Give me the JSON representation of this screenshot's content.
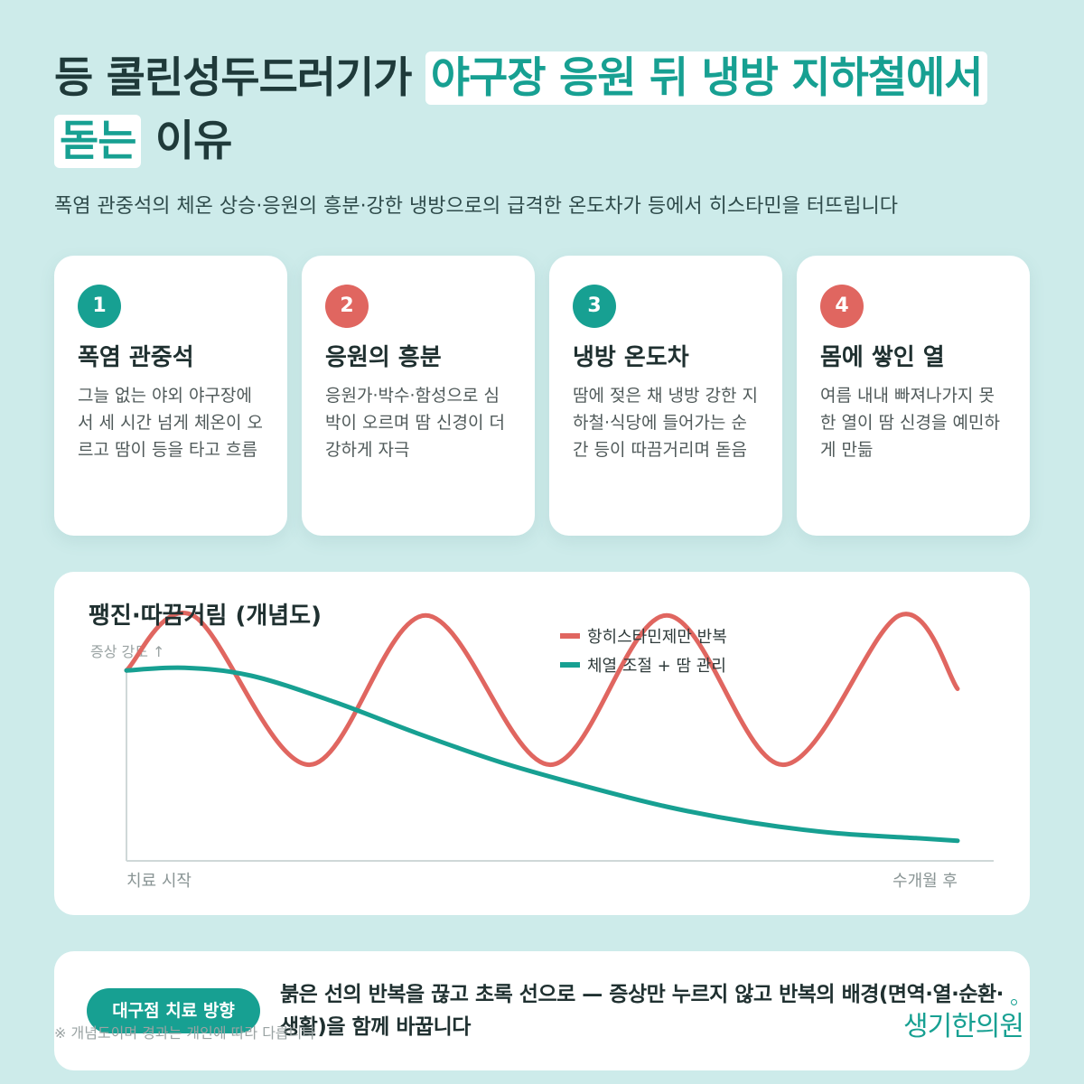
{
  "title": {
    "prefix": "등 콜린성두드러기가 ",
    "highlight": "야구장 응원 뒤 냉방 지하철에서 돋는",
    "suffix": " 이유"
  },
  "subtitle": "폭염 관중석의 체온 상승·응원의 흥분·강한 냉방으로의 급격한 온도차가 등에서 히스타민을 터뜨립니다",
  "cards": [
    {
      "num": "1",
      "title": "폭염 관중석",
      "desc": "그늘 없는 야외 야구장에서 세 시간 넘게 체온이 오르고 땀이 등을 타고 흐름",
      "color": "#17a092"
    },
    {
      "num": "2",
      "title": "응원의 흥분",
      "desc": "응원가·박수·함성으로 심박이 오르며 땀 신경이 더 강하게 자극",
      "color": "#e06660"
    },
    {
      "num": "3",
      "title": "냉방 온도차",
      "desc": "땀에 젖은 채 냉방 강한 지하철·식당에 들어가는 순간 등이 따끔거리며 돋음",
      "color": "#17a092"
    },
    {
      "num": "4",
      "title": "몸에 쌓인 열",
      "desc": "여름 내내 빠져나가지 못한 열이 땀 신경을 예민하게 만듦",
      "color": "#e06660"
    }
  ],
  "chart": {
    "title": "팽진·따끔거림 (개념도)",
    "ylabel": "증상 강도 ↑",
    "x_start": "치료 시작",
    "x_end": "수개월 후",
    "legend": [
      {
        "label": "항히스타민제만 반복",
        "color": "#e06660"
      },
      {
        "label": "체열 조절 + 땀 관리",
        "color": "#17a092"
      }
    ]
  },
  "chart_data": {
    "type": "line",
    "title": "팽진·따끔거림 (개념도)",
    "ylabel": "증상 강도 ↑",
    "xlabel": "",
    "x_labels": [
      "치료 시작",
      "수개월 후"
    ],
    "xlim": [
      0,
      1
    ],
    "ylim": [
      0,
      1
    ],
    "grid": false,
    "legend_position": "top-center",
    "series": [
      {
        "name": "항히스타민제만 반복",
        "color": "#e06660",
        "x": [
          0,
          0.08,
          0.22,
          0.36,
          0.51,
          0.65,
          0.79,
          0.93,
          1.0
        ],
        "y": [
          0.72,
          0.93,
          0.36,
          0.93,
          0.36,
          0.93,
          0.36,
          0.93,
          0.65
        ]
      },
      {
        "name": "체열 조절 + 땀 관리",
        "color": "#17a092",
        "x": [
          0,
          0.07,
          0.15,
          0.25,
          0.35,
          0.45,
          0.55,
          0.65,
          0.75,
          0.85,
          0.95,
          1.0
        ],
        "y": [
          0.72,
          0.73,
          0.7,
          0.6,
          0.48,
          0.37,
          0.28,
          0.2,
          0.14,
          0.1,
          0.08,
          0.07
        ]
      }
    ]
  },
  "bottom": {
    "badge": "대구점 치료 방향",
    "text": "붉은 선의 반복을 끊고 초록 선으로 — 증상만 누르지 않고 반복의 배경(면역·열·순환·생활)을 함께 바꿉니다",
    "footnote": "※ 개념도이며 경과는 개인에 따라 다릅니다",
    "logo": "생기한의원"
  }
}
